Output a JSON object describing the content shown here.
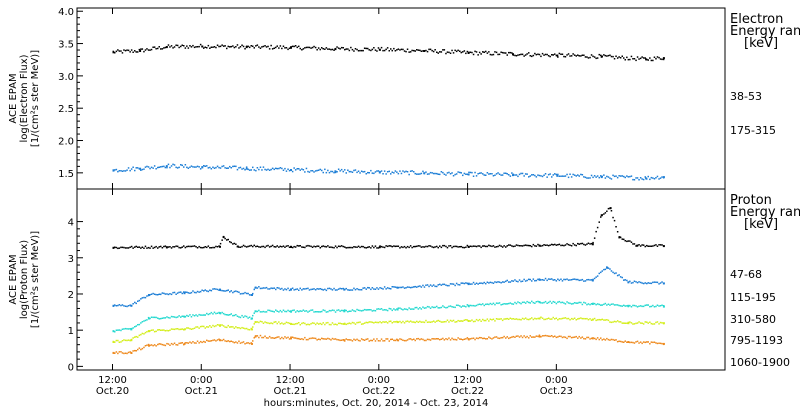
{
  "chart_data": [
    {
      "type": "scatter",
      "panel": "electron",
      "ylabel": [
        "ACE EPAM",
        "log(Electron Flux)",
        "[1/(cm²s ster MeV)]"
      ],
      "ylim": [
        1.25,
        4.05
      ],
      "yticks": [
        1.5,
        2.0,
        2.5,
        3.0,
        3.5,
        4.0
      ],
      "ytick_labels": [
        "1.5",
        "2.0",
        "2.5",
        "3.0",
        "3.5",
        "4.0"
      ],
      "legend_title": [
        "Electron",
        "Energy ran",
        "[keV]"
      ],
      "series": [
        {
          "name": "38-53",
          "color": "#000000",
          "x": [
            0.0,
            0.15,
            0.3,
            0.5,
            0.75,
            1.0,
            1.25,
            1.5,
            1.75,
            2.0,
            2.25,
            2.5,
            2.75,
            3.0,
            3.1
          ],
          "y": [
            3.38,
            3.4,
            3.46,
            3.47,
            3.46,
            3.45,
            3.43,
            3.42,
            3.4,
            3.37,
            3.35,
            3.33,
            3.31,
            3.27,
            3.29
          ]
        },
        {
          "name": "175-315",
          "color": "#1e7fd6",
          "x": [
            0.0,
            0.15,
            0.3,
            0.5,
            0.75,
            1.0,
            1.25,
            1.5,
            1.75,
            2.0,
            2.25,
            2.5,
            2.75,
            3.0,
            3.1
          ],
          "y": [
            1.55,
            1.58,
            1.62,
            1.6,
            1.58,
            1.56,
            1.54,
            1.52,
            1.51,
            1.49,
            1.48,
            1.47,
            1.45,
            1.43,
            1.45
          ]
        }
      ]
    },
    {
      "type": "scatter",
      "panel": "proton",
      "ylabel": [
        "ACE EPAM",
        "log(Proton Flux)",
        "[1/(cm²s ster MeV)]"
      ],
      "ylim": [
        -0.1,
        4.9
      ],
      "yticks": [
        0,
        1,
        2,
        3,
        4
      ],
      "ytick_labels": [
        "0",
        "1",
        "2",
        "3",
        "4"
      ],
      "legend_title": [
        "Proton",
        "Energy ran",
        "[keV]"
      ],
      "series": [
        {
          "name": "47-68",
          "color": "#000000",
          "x": [
            0.0,
            0.3,
            0.6,
            0.62,
            0.7,
            1.0,
            1.5,
            2.0,
            2.4,
            2.7,
            2.75,
            2.8,
            2.85,
            2.95,
            3.1
          ],
          "y": [
            3.3,
            3.32,
            3.33,
            3.6,
            3.34,
            3.33,
            3.32,
            3.33,
            3.36,
            3.4,
            4.2,
            4.4,
            3.6,
            3.36,
            3.35
          ]
        },
        {
          "name": "115-195",
          "color": "#1e7fd6",
          "x": [
            0.0,
            0.1,
            0.2,
            0.4,
            0.6,
            0.78,
            0.8,
            1.0,
            1.3,
            1.6,
            2.0,
            2.4,
            2.7,
            2.78,
            2.9,
            3.1
          ],
          "y": [
            1.7,
            1.7,
            2.0,
            2.05,
            2.15,
            2.0,
            2.2,
            2.15,
            2.15,
            2.2,
            2.3,
            2.42,
            2.4,
            2.75,
            2.35,
            2.32
          ]
        },
        {
          "name": "310-580",
          "color": "#26d9d0",
          "x": [
            0.0,
            0.1,
            0.2,
            0.4,
            0.6,
            0.78,
            0.8,
            1.0,
            1.3,
            1.6,
            2.0,
            2.4,
            2.7,
            2.9,
            3.1
          ],
          "y": [
            1.0,
            1.05,
            1.35,
            1.4,
            1.5,
            1.35,
            1.55,
            1.55,
            1.55,
            1.6,
            1.7,
            1.8,
            1.75,
            1.7,
            1.68
          ]
        },
        {
          "name": "795-1193",
          "color": "#d4ee1e",
          "x": [
            0.0,
            0.1,
            0.2,
            0.4,
            0.6,
            0.78,
            0.8,
            1.0,
            1.3,
            1.6,
            2.0,
            2.4,
            2.7,
            2.9,
            3.1
          ],
          "y": [
            0.7,
            0.75,
            1.0,
            1.05,
            1.15,
            1.05,
            1.25,
            1.2,
            1.2,
            1.25,
            1.28,
            1.35,
            1.32,
            1.22,
            1.22
          ]
        },
        {
          "name": "1060-1900",
          "color": "#ee8a1e",
          "x": [
            0.0,
            0.1,
            0.2,
            0.4,
            0.6,
            0.78,
            0.8,
            1.0,
            1.3,
            1.6,
            2.0,
            2.4,
            2.7,
            2.9,
            3.1
          ],
          "y": [
            0.4,
            0.4,
            0.6,
            0.65,
            0.75,
            0.65,
            0.85,
            0.8,
            0.75,
            0.75,
            0.78,
            0.85,
            0.8,
            0.7,
            0.65
          ]
        }
      ]
    }
  ],
  "x_axis": {
    "xlim": [
      -0.2,
      3.45
    ],
    "xlabel": "hours:minutes, Oct. 20, 2014 - Oct. 23, 2014",
    "ticks": [
      {
        "x": 0.0,
        "time": "12:00",
        "date": "Oct.20"
      },
      {
        "x": 0.5,
        "time": "0:00",
        "date": "Oct.21"
      },
      {
        "x": 1.0,
        "time": "12:00",
        "date": "Oct.21"
      },
      {
        "x": 1.5,
        "time": "0:00",
        "date": "Oct.22"
      },
      {
        "x": 2.0,
        "time": "12:00",
        "date": "Oct.22"
      },
      {
        "x": 2.5,
        "time": "0:00",
        "date": "Oct.23"
      }
    ]
  }
}
